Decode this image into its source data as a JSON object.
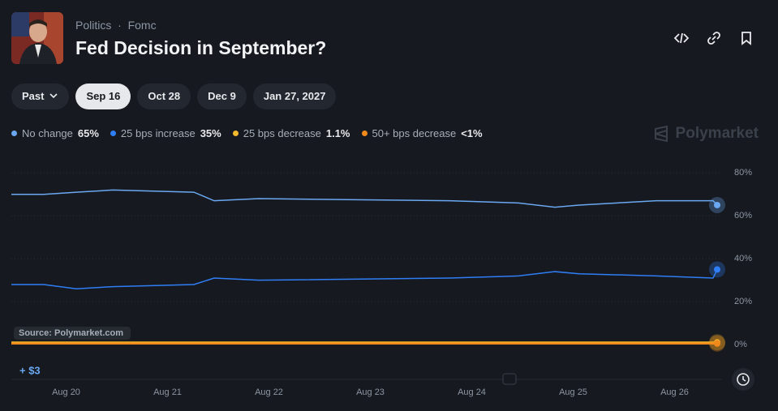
{
  "header": {
    "breadcrumb": [
      "Politics",
      "Fomc"
    ],
    "title": "Fed Decision in September?"
  },
  "tabs": [
    "Past",
    "Sep 16",
    "Oct 28",
    "Dec 9",
    "Jan 27, 2027"
  ],
  "selected_tab": 1,
  "brand": "Polymarket",
  "source": "Source: Polymarket.com",
  "balance": "+ $3",
  "chart_data": {
    "type": "line",
    "x": [
      -0.54,
      -0.22,
      0.1,
      0.46,
      1.26,
      1.46,
      1.9,
      3.78,
      4.46,
      4.82,
      5.06,
      5.82,
      6.38,
      6.42
    ],
    "xlim": [
      -0.54,
      6.42
    ],
    "xticks": [
      {
        "value": 0,
        "label": "Aug 20"
      },
      {
        "value": 1,
        "label": "Aug 21"
      },
      {
        "value": 2,
        "label": "Aug 22"
      },
      {
        "value": 3,
        "label": "Aug 23"
      },
      {
        "value": 4,
        "label": "Aug 24"
      },
      {
        "value": 5,
        "label": "Aug 25"
      },
      {
        "value": 6,
        "label": "Aug 26"
      }
    ],
    "ylim": [
      -6,
      85
    ],
    "yticks": [
      {
        "value": 0,
        "label": "0%"
      },
      {
        "value": 20,
        "label": "20%"
      },
      {
        "value": 40,
        "label": "40%"
      },
      {
        "value": 60,
        "label": "60%"
      },
      {
        "value": 80,
        "label": "80%"
      }
    ],
    "grid": true,
    "series": [
      {
        "name": "No change",
        "color": "#6aa8f2",
        "last_label": "65%",
        "values": [
          70,
          70,
          71,
          72,
          71,
          67,
          68,
          67,
          66,
          64,
          65,
          67,
          67,
          65
        ]
      },
      {
        "name": "25 bps increase",
        "color": "#2f7ef5",
        "last_label": "35%",
        "values": [
          28,
          28,
          26,
          27,
          28,
          31,
          30,
          31,
          32,
          34,
          33,
          32,
          31,
          35
        ]
      },
      {
        "name": "25 bps decrease",
        "color": "#f3b92c",
        "last_label": "1.1%",
        "values": [
          1,
          1,
          1,
          1,
          1,
          1,
          1,
          1,
          1,
          1,
          1,
          1,
          1,
          1.1
        ]
      },
      {
        "name": "50+ bps decrease",
        "color": "#f28a1b",
        "last_label": "<1%",
        "values": [
          0.5,
          0.5,
          0.5,
          0.5,
          0.5,
          0.5,
          0.5,
          0.5,
          0.5,
          0.5,
          0.5,
          0.5,
          0.5,
          0.5
        ]
      }
    ]
  }
}
